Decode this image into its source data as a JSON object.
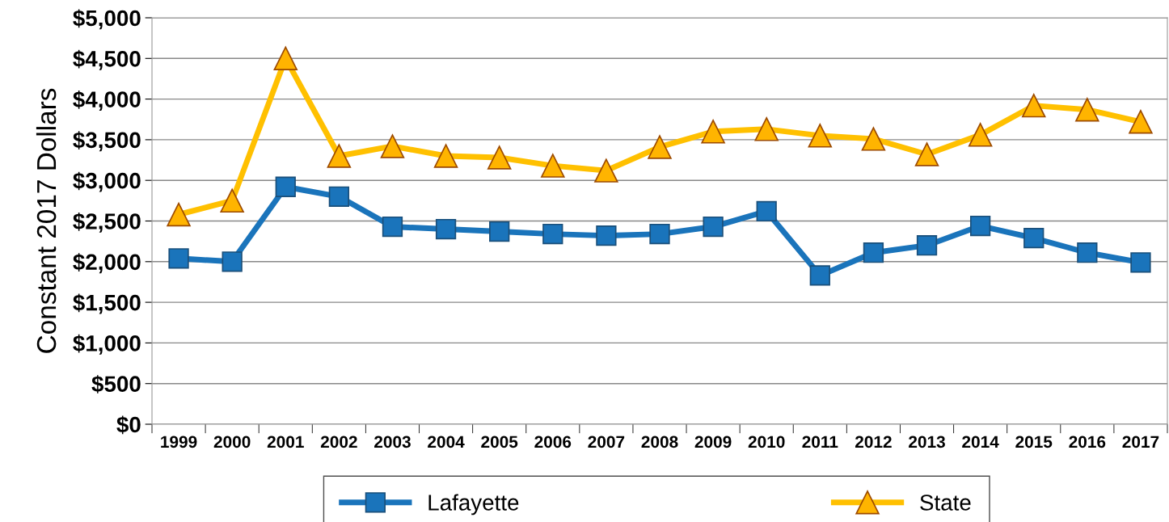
{
  "chart_data": {
    "type": "line",
    "ylabel": "Constant 2017 Dollars",
    "categories": [
      "1999",
      "2000",
      "2001",
      "2002",
      "2003",
      "2004",
      "2005",
      "2006",
      "2007",
      "2008",
      "2009",
      "2010",
      "2011",
      "2012",
      "2013",
      "2014",
      "2015",
      "2016",
      "2017"
    ],
    "series": [
      {
        "name": "Lafayette",
        "color": "#1a74bb",
        "marker": "square",
        "values": [
          2040,
          2000,
          2920,
          2800,
          2430,
          2400,
          2370,
          2340,
          2320,
          2340,
          2430,
          2620,
          1830,
          2110,
          2200,
          2440,
          2290,
          2110,
          1990
        ]
      },
      {
        "name": "State",
        "color": "#ffc000",
        "marker": "triangle",
        "values": [
          2580,
          2750,
          4500,
          3300,
          3420,
          3300,
          3280,
          3180,
          3120,
          3410,
          3600,
          3630,
          3550,
          3510,
          3320,
          3560,
          3920,
          3870,
          3720
        ]
      }
    ],
    "ylim": [
      0,
      5000
    ],
    "yticks": [
      {
        "value": 0,
        "label": "$0"
      },
      {
        "value": 500,
        "label": "$500"
      },
      {
        "value": 1000,
        "label": "$1,000"
      },
      {
        "value": 1500,
        "label": "$1,500"
      },
      {
        "value": 2000,
        "label": "$2,000"
      },
      {
        "value": 2500,
        "label": "$2,500"
      },
      {
        "value": 3000,
        "label": "$3,000"
      },
      {
        "value": 3500,
        "label": "$3,500"
      },
      {
        "value": 4000,
        "label": "$4,000"
      },
      {
        "value": 4500,
        "label": "$4,500"
      },
      {
        "value": 5000,
        "label": "$5,000"
      }
    ],
    "grid": "y",
    "legend": "bottom",
    "line_style": "solid"
  }
}
